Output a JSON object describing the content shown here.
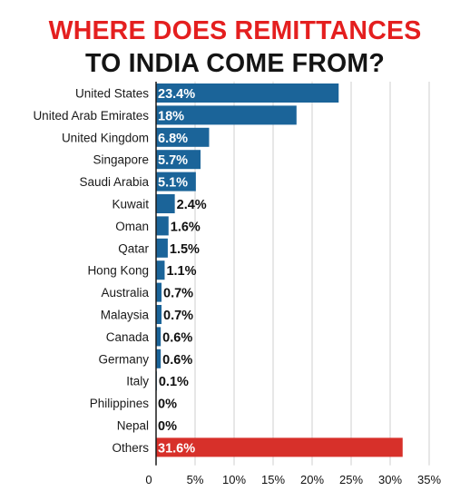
{
  "title_line1": "WHERE DOES REMITTANCES",
  "title_line2": "TO INDIA COME FROM?",
  "colors": {
    "title_line1": "#e41f1f",
    "title_line2": "#141414",
    "bar": "#1b6499",
    "highlight_bar": "#d7302a",
    "grid": "#cfcfcf",
    "label_inside": "#ffffff",
    "label_outside": "#111111"
  },
  "chart_data": {
    "type": "bar",
    "orientation": "horizontal",
    "title": "WHERE DOES REMITTANCES TO INDIA COME FROM?",
    "categories": [
      "United States",
      "United Arab Emirates",
      "United Kingdom",
      "Singapore",
      "Saudi Arabia",
      "Kuwait",
      "Oman",
      "Qatar",
      "Hong Kong",
      "Australia",
      "Malaysia",
      "Canada",
      "Germany",
      "Italy",
      "Philippines",
      "Nepal",
      "Others"
    ],
    "values": [
      23.4,
      18,
      6.8,
      5.7,
      5.1,
      2.4,
      1.6,
      1.5,
      1.1,
      0.7,
      0.7,
      0.6,
      0.6,
      0.1,
      0,
      0,
      31.6
    ],
    "value_labels": [
      "23.4%",
      "18%",
      "6.8%",
      "5.7%",
      "5.1%",
      "2.4%",
      "1.6%",
      "1.5%",
      "1.1%",
      "0.7%",
      "0.7%",
      "0.6%",
      "0.6%",
      "0.1%",
      "0%",
      "0%",
      "31.6%"
    ],
    "highlight": [
      "Others"
    ],
    "xlim": [
      0,
      35
    ],
    "xticks": [
      0,
      5,
      10,
      15,
      20,
      25,
      30,
      35
    ],
    "xtick_labels": [
      "0",
      "5%",
      "10%",
      "15%",
      "20%",
      "25%",
      "30%",
      "35%"
    ],
    "xlabel": "",
    "ylabel": "",
    "grid": "vertical"
  }
}
